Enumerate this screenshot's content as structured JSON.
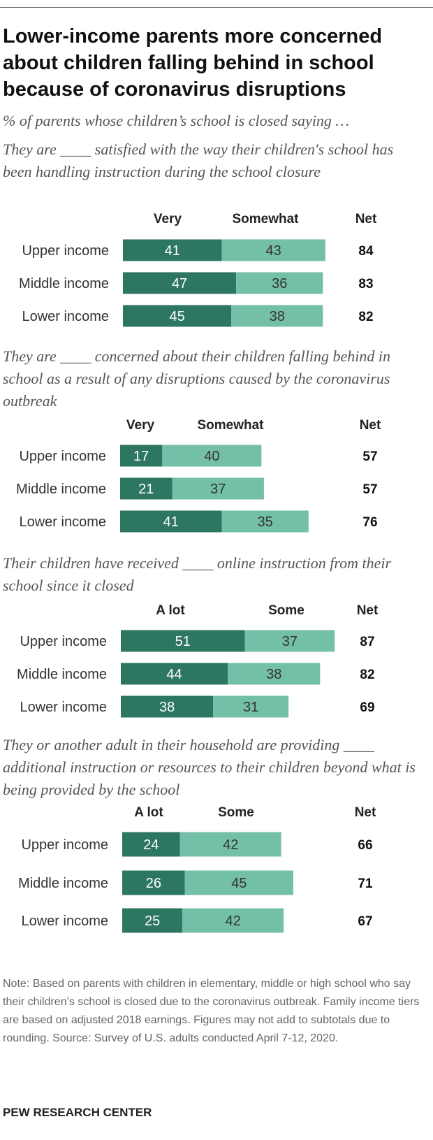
{
  "title": "Lower-income parents more concerned about children falling behind in school because of coronavirus disruptions",
  "subtitle": "% of parents whose children’s school is closed saying …",
  "colors": {
    "dark": "#2c7662",
    "light": "#73bfa7",
    "dark_text": "#ffffff",
    "light_text": "#333333"
  },
  "chart_data": [
    {
      "type": "bar",
      "stacked": true,
      "orientation": "horizontal",
      "title": "They are ____ satisfied with the way their children's school has been handling instruction during the school closure",
      "series_names": [
        "Very",
        "Somewhat"
      ],
      "net_label": "Net",
      "categories": [
        "Upper income",
        "Middle income",
        "Lower income"
      ],
      "series": [
        {
          "name": "Very",
          "values": [
            41,
            47,
            45
          ]
        },
        {
          "name": "Somewhat",
          "values": [
            43,
            36,
            38
          ]
        }
      ],
      "net": [
        84,
        83,
        82
      ]
    },
    {
      "type": "bar",
      "stacked": true,
      "orientation": "horizontal",
      "title": "They are ____ concerned about their children falling behind in school as a result of any disruptions caused by the coronavirus outbreak",
      "series_names": [
        "Very",
        "Somewhat"
      ],
      "net_label": "Net",
      "categories": [
        "Upper income",
        "Middle income",
        "Lower income"
      ],
      "series": [
        {
          "name": "Very",
          "values": [
            17,
            21,
            41
          ]
        },
        {
          "name": "Somewhat",
          "values": [
            40,
            37,
            35
          ]
        }
      ],
      "net": [
        57,
        57,
        76
      ]
    },
    {
      "type": "bar",
      "stacked": true,
      "orientation": "horizontal",
      "title": "Their children have received ____ online instruction from their school since it closed",
      "series_names": [
        "A lot",
        "Some"
      ],
      "net_label": "Net",
      "categories": [
        "Upper income",
        "Middle income",
        "Lower income"
      ],
      "series": [
        {
          "name": "A lot",
          "values": [
            51,
            44,
            38
          ]
        },
        {
          "name": "Some",
          "values": [
            37,
            38,
            31
          ]
        }
      ],
      "net": [
        87,
        82,
        69
      ]
    },
    {
      "type": "bar",
      "stacked": true,
      "orientation": "horizontal",
      "title": "They or another adult in their household are providing ____ additional instruction or resources to their children beyond what is being provided by the school",
      "series_names": [
        "A lot",
        "Some"
      ],
      "net_label": "Net",
      "categories": [
        "Upper income",
        "Middle income",
        "Lower income"
      ],
      "series": [
        {
          "name": "A lot",
          "values": [
            24,
            26,
            25
          ]
        },
        {
          "name": "Some",
          "values": [
            42,
            45,
            42
          ]
        }
      ],
      "net": [
        66,
        71,
        67
      ]
    }
  ],
  "note": "Note: Based on parents with children in elementary, middle or high school who say their children’s school is closed due to the coronavirus outbreak. Family income tiers are based on adjusted 2018 earnings. Figures may not add to subtotals due to rounding.",
  "source": "Source: Survey of U.S. adults conducted April 7-12, 2020.",
  "brand": "PEW RESEARCH CENTER"
}
